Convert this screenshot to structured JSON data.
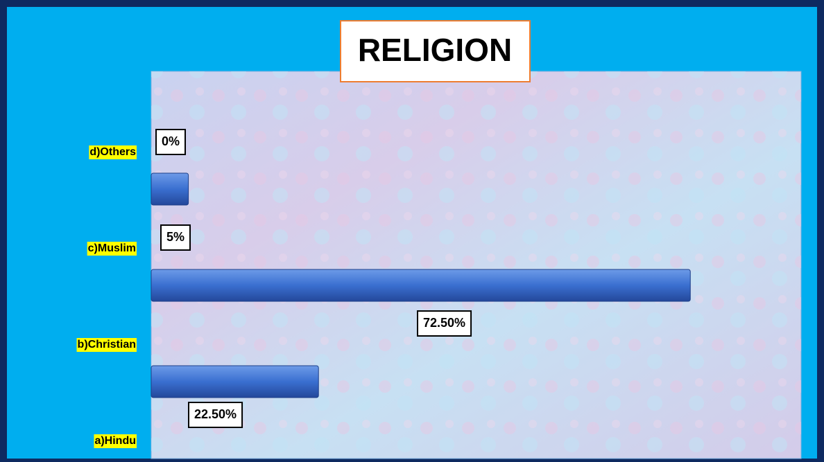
{
  "chart_data": {
    "type": "hbar",
    "title": "RELIGION",
    "categories": [
      "a)Hindu",
      "b)Christian",
      "c)Muslim",
      "d)Others"
    ],
    "values": [
      22.5,
      72.5,
      5,
      0
    ],
    "value_labels": [
      "22.50%",
      "72.50%",
      "5%",
      "0%"
    ],
    "color": "#3a6fd0",
    "xlim": [
      0,
      87.4
    ]
  }
}
